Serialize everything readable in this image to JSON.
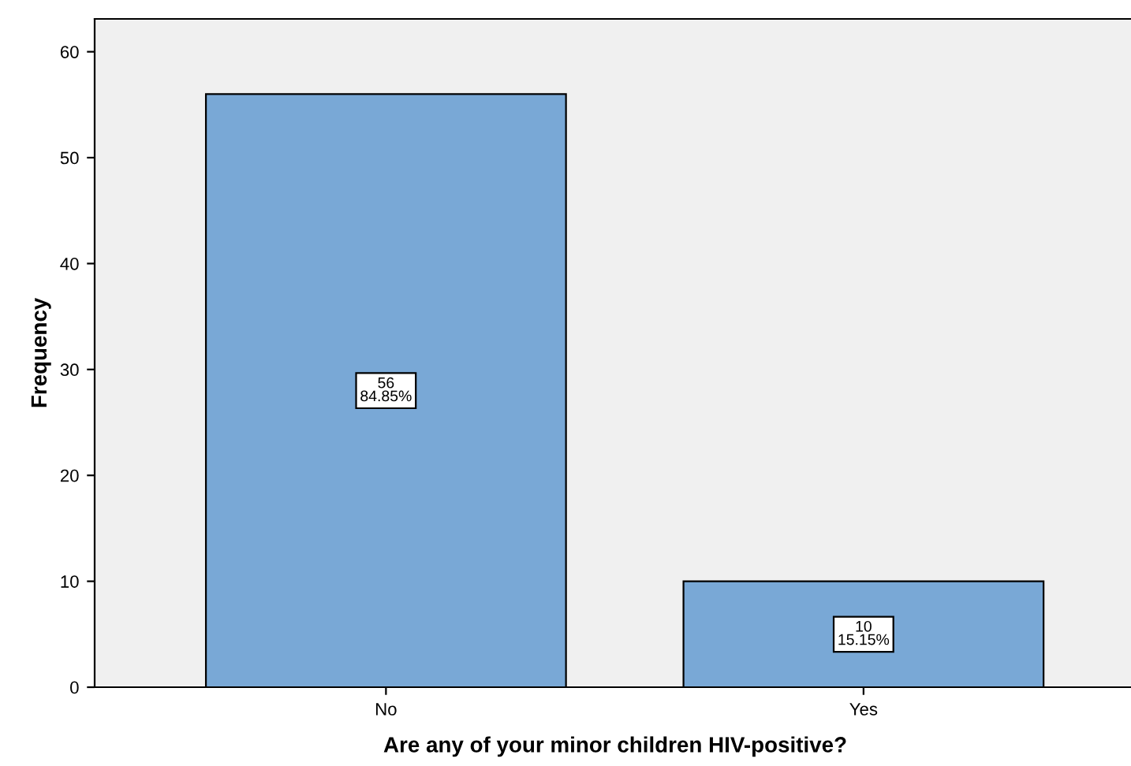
{
  "chart_data": {
    "type": "bar",
    "xlabel": "Are any of your minor children HIV-positive?",
    "ylabel": "Frequency",
    "categories": [
      "No",
      "Yes"
    ],
    "values": [
      56,
      10
    ],
    "value_labels": [
      "56\n84.85%",
      "10\n15.15%"
    ],
    "color": "#79a8d6",
    "ylim": [
      0,
      63.1
    ],
    "yticks": [
      0,
      10,
      20,
      30,
      40,
      50,
      60
    ],
    "grid": false,
    "legend": false
  }
}
